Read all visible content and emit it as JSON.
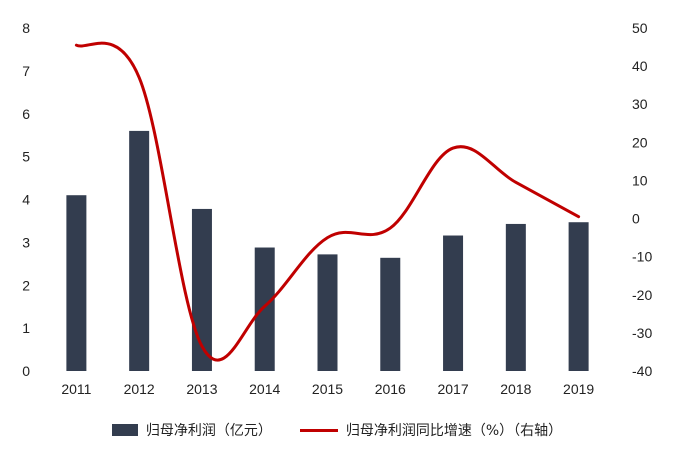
{
  "chart_data": {
    "type": "bar+line",
    "categories": [
      "2011",
      "2012",
      "2013",
      "2014",
      "2015",
      "2016",
      "2017",
      "2018",
      "2019"
    ],
    "series": [
      {
        "name": "归母净利润（亿元）",
        "type": "bar",
        "axis": "left",
        "values": [
          4.1,
          5.6,
          3.78,
          2.88,
          2.72,
          2.64,
          3.16,
          3.43,
          3.47
        ]
      },
      {
        "name": "归母净利润同比增速（%）（右轴）",
        "type": "line",
        "axis": "right",
        "values": [
          45.5,
          37,
          -33.5,
          -23,
          -5,
          -2.5,
          18.5,
          9.5,
          0.5
        ]
      }
    ],
    "left_axis": {
      "ylim": [
        0,
        8
      ],
      "ticks": [
        0,
        1,
        2,
        3,
        4,
        5,
        6,
        7,
        8
      ]
    },
    "right_axis": {
      "ylim": [
        -40,
        50
      ],
      "ticks": [
        -40,
        -30,
        -20,
        -10,
        0,
        10,
        20,
        30,
        40,
        50
      ]
    },
    "grid": false,
    "legend_position": "bottom"
  },
  "colors": {
    "bar": "#333d4f",
    "line": "#c00000",
    "text": "#222222"
  }
}
